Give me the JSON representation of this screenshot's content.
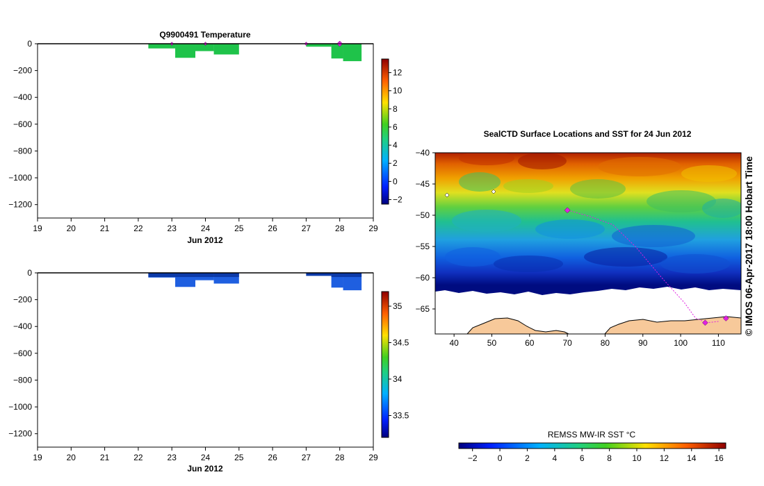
{
  "colors": {
    "profile_green": "#1fc34a",
    "profile_blue": "#1f5fe0",
    "profile_blue_dark": "#0c3aa8",
    "marker": "#e020e0",
    "land": "#f7c99a",
    "sea_ice": "#ffffff"
  },
  "chart_data": [
    {
      "id": "temperature_profile",
      "type": "heatmap",
      "title": "Q9900491   Temperature",
      "xlabel": "Jun 2012",
      "ylabel": "",
      "xlim": [
        19,
        29
      ],
      "ylim": [
        -1300,
        0
      ],
      "xticks": [
        "19",
        "20",
        "21",
        "22",
        "23",
        "24",
        "25",
        "26",
        "27",
        "28",
        "29"
      ],
      "yticks": [
        "0",
        "−200",
        "−400",
        "−600",
        "−800",
        "−1000",
        "−1200"
      ],
      "ytick_values": [
        0,
        -200,
        -400,
        -600,
        -800,
        -1000,
        -1200
      ],
      "profiles": [
        {
          "x0": 22.3,
          "x1": 23.1,
          "depth": -35
        },
        {
          "x0": 23.1,
          "x1": 23.7,
          "depth": -105
        },
        {
          "x0": 23.7,
          "x1": 24.25,
          "depth": -55
        },
        {
          "x0": 24.25,
          "x1": 25.0,
          "depth": -80
        },
        {
          "x0": 27.0,
          "x1": 27.75,
          "depth": -22
        },
        {
          "x0": 27.75,
          "x1": 28.1,
          "depth": -110
        },
        {
          "x0": 28.1,
          "x1": 28.65,
          "depth": -130
        }
      ],
      "markers": [
        {
          "x": 23.0,
          "depth": 0,
          "size": "small"
        },
        {
          "x": 24.0,
          "depth": 0,
          "size": "small"
        },
        {
          "x": 27.0,
          "depth": 0,
          "size": "small"
        },
        {
          "x": 28.0,
          "depth": 0,
          "size": "large"
        }
      ],
      "colorbar": {
        "range": [
          -2.5,
          13.5
        ],
        "ticks": [
          "−2",
          "0",
          "2",
          "4",
          "6",
          "8",
          "10",
          "12"
        ],
        "tick_values": [
          -2,
          0,
          2,
          4,
          6,
          8,
          10,
          12
        ]
      }
    },
    {
      "id": "salinity_profile",
      "type": "heatmap",
      "title": "",
      "xlabel": "Jun 2012",
      "ylabel": "",
      "xlim": [
        19,
        29
      ],
      "ylim": [
        -1300,
        0
      ],
      "xticks": [
        "19",
        "20",
        "21",
        "22",
        "23",
        "24",
        "25",
        "26",
        "27",
        "28",
        "29"
      ],
      "yticks": [
        "0",
        "−200",
        "−400",
        "−600",
        "−800",
        "−1000",
        "−1200"
      ],
      "ytick_values": [
        0,
        -200,
        -400,
        -600,
        -800,
        -1000,
        -1200
      ],
      "profiles": [
        {
          "x0": 22.3,
          "x1": 23.1,
          "depth": -35
        },
        {
          "x0": 23.1,
          "x1": 23.7,
          "depth": -105
        },
        {
          "x0": 23.7,
          "x1": 24.25,
          "depth": -55
        },
        {
          "x0": 24.25,
          "x1": 25.0,
          "depth": -80
        },
        {
          "x0": 27.0,
          "x1": 27.75,
          "depth": -22
        },
        {
          "x0": 27.75,
          "x1": 28.1,
          "depth": -110
        },
        {
          "x0": 28.1,
          "x1": 28.65,
          "depth": -130
        }
      ],
      "colorbar": {
        "range": [
          33.2,
          35.2
        ],
        "ticks": [
          "33.5",
          "34",
          "34.5",
          "35"
        ],
        "tick_values": [
          33.5,
          34,
          34.5,
          35
        ]
      }
    },
    {
      "id": "sst_map",
      "type": "heatmap",
      "title": "SealCTD Surface Locations and SST for 24 Jun 2012",
      "xlim": [
        35,
        116
      ],
      "ylim": [
        -69,
        -40
      ],
      "xticks": [
        "40",
        "50",
        "60",
        "70",
        "80",
        "90",
        "100",
        "110"
      ],
      "xtick_values": [
        40,
        50,
        60,
        70,
        80,
        90,
        100,
        110
      ],
      "yticks": [
        "−40",
        "−45",
        "−50",
        "−55",
        "−60",
        "−65"
      ],
      "ytick_values": [
        -40,
        -45,
        -50,
        -55,
        -60,
        -65
      ],
      "track": [
        [
          70.2,
          -49.2
        ],
        [
          76,
          -50.2
        ],
        [
          82,
          -51.5
        ],
        [
          88,
          -55
        ],
        [
          95,
          -60
        ],
        [
          101,
          -64
        ],
        [
          104,
          -66.5
        ],
        [
          107,
          -67.2
        ],
        [
          110,
          -67
        ]
      ],
      "surface_locations": [
        [
          70,
          -49.2
        ],
        [
          106.5,
          -67.2
        ],
        [
          112,
          -66.5
        ]
      ],
      "sst_bands": [
        {
          "lat": -40,
          "sst": 13.5
        },
        {
          "lat": -43,
          "sst": 11
        },
        {
          "lat": -46,
          "sst": 7.5
        },
        {
          "lat": -49,
          "sst": 5.5
        },
        {
          "lat": -52,
          "sst": 3.5
        },
        {
          "lat": -55,
          "sst": 2
        },
        {
          "lat": -58,
          "sst": 0.5
        },
        {
          "lat": -61,
          "sst": -1.2
        },
        {
          "lat": -62,
          "sst": -2
        }
      ],
      "colorbar": {
        "label": "REMSS MW-IR SST °C",
        "range": [
          -3,
          16.5
        ],
        "ticks": [
          "−2",
          "0",
          "2",
          "4",
          "6",
          "8",
          "10",
          "12",
          "14",
          "16"
        ],
        "tick_values": [
          -2,
          0,
          2,
          4,
          6,
          8,
          10,
          12,
          14,
          16
        ]
      }
    }
  ],
  "copyright": "©  IMOS 06-Apr-2017 18:00 Hobart Time"
}
